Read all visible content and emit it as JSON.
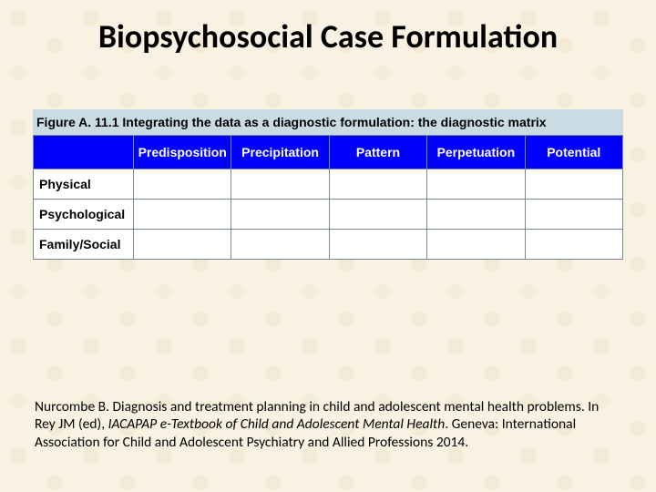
{
  "title": "Biopsychosocial Case Formulation",
  "figure": {
    "caption": "Figure A. 11.1 Integrating the data as a diagnostic formulation: the diagnostic matrix",
    "caption_bg": "#c9dce4",
    "header_bg": "#0000ff",
    "header_color": "#ffffff",
    "cell_bg": "#ffffff",
    "border_color": "#7a8a92",
    "columns": [
      "Predisposition",
      "Precipitation",
      "Pattern",
      "Perpetuation",
      "Potential"
    ],
    "rows": [
      "Physical",
      "Psychological",
      "Family/Social"
    ]
  },
  "citation": {
    "part1": "Nurcombe B. Diagnosis and treatment planning in child and adolescent mental health problems. In Rey JM (ed), ",
    "italic": "IACAPAP e-Textbook of Child and Adolescent Mental Health",
    "part2": ". Geneva: International Association for Child and Adolescent Psychiatry and Allied Professions 2014."
  },
  "styles": {
    "background_color": "#f9f2e3",
    "title_fontsize": 36,
    "header_fontsize": 14,
    "rowlabel_fontsize": 14,
    "citation_fontsize": 15.5
  }
}
